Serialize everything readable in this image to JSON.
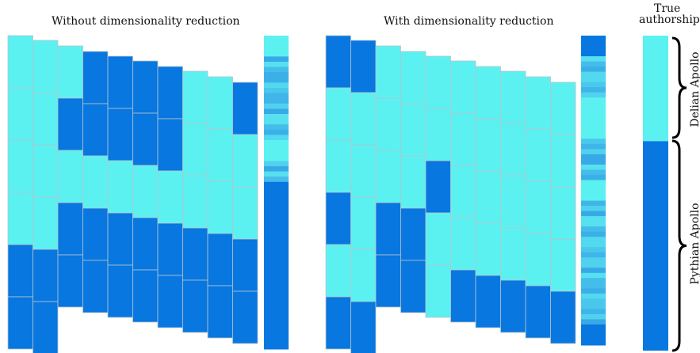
{
  "titles": {
    "left": "Without dimensionality reduction",
    "right": "With dimensionality reduction",
    "true_line1": "True",
    "true_line2": "authorship"
  },
  "labels": {
    "delian": "Delian Apollo",
    "pythian": "Pythian Apollo"
  },
  "colors": {
    "cyan": "#5cf1f1",
    "blue": "#0877e0",
    "border": "#b8c4cc"
  },
  "panels": [
    {
      "name": "without-dimensionality-reduction",
      "columns": [
        [
          "cyan",
          "cyan",
          "cyan",
          "cyan",
          "blue",
          "blue"
        ],
        [
          "cyan",
          "cyan",
          "cyan",
          "cyan",
          "blue",
          "blue"
        ],
        [
          "cyan",
          "blue",
          "cyan",
          "blue",
          "blue"
        ],
        [
          "blue",
          "blue",
          "cyan",
          "blue",
          "blue"
        ],
        [
          "blue",
          "blue",
          "cyan",
          "blue",
          "blue"
        ],
        [
          "blue",
          "blue",
          "cyan",
          "blue",
          "blue"
        ],
        [
          "blue",
          "blue",
          "cyan",
          "blue",
          "blue"
        ],
        [
          "cyan",
          "cyan",
          "cyan",
          "blue",
          "blue"
        ],
        [
          "cyan",
          "cyan",
          "cyan",
          "blue",
          "blue"
        ],
        [
          "blue",
          "cyan",
          "cyan",
          "blue",
          "blue"
        ]
      ],
      "summary_bar": [
        "cyan",
        "mix",
        "mix",
        "mix",
        "mix",
        "cyan",
        "mix",
        "blue",
        "blue",
        "blue",
        "blue",
        "blue",
        "blue",
        "blue",
        "blue"
      ]
    },
    {
      "name": "with-dimensionality-reduction",
      "columns": [
        [
          "blue",
          "cyan",
          "cyan",
          "blue",
          "cyan",
          "blue"
        ],
        [
          "blue",
          "cyan",
          "cyan",
          "cyan",
          "cyan",
          "blue"
        ],
        [
          "cyan",
          "cyan",
          "cyan",
          "blue",
          "blue"
        ],
        [
          "cyan",
          "cyan",
          "cyan",
          "blue",
          "blue"
        ],
        [
          "cyan",
          "cyan",
          "blue",
          "cyan",
          "cyan"
        ],
        [
          "cyan",
          "cyan",
          "cyan",
          "cyan",
          "blue"
        ],
        [
          "cyan",
          "cyan",
          "cyan",
          "cyan",
          "blue"
        ],
        [
          "cyan",
          "cyan",
          "cyan",
          "cyan",
          "blue"
        ],
        [
          "cyan",
          "cyan",
          "cyan",
          "cyan",
          "blue"
        ],
        [
          "cyan",
          "cyan",
          "cyan",
          "cyan",
          "blue"
        ]
      ],
      "summary_bar": [
        "blue",
        "mix",
        "mix",
        "cyan",
        "cyan",
        "mix",
        "mix",
        "cyan",
        "mix",
        "mix",
        "mix",
        "mix",
        "mix",
        "mix",
        "blue"
      ]
    }
  ],
  "true_authorship": {
    "delian_fraction": 0.335,
    "pythian_fraction": 0.665
  }
}
